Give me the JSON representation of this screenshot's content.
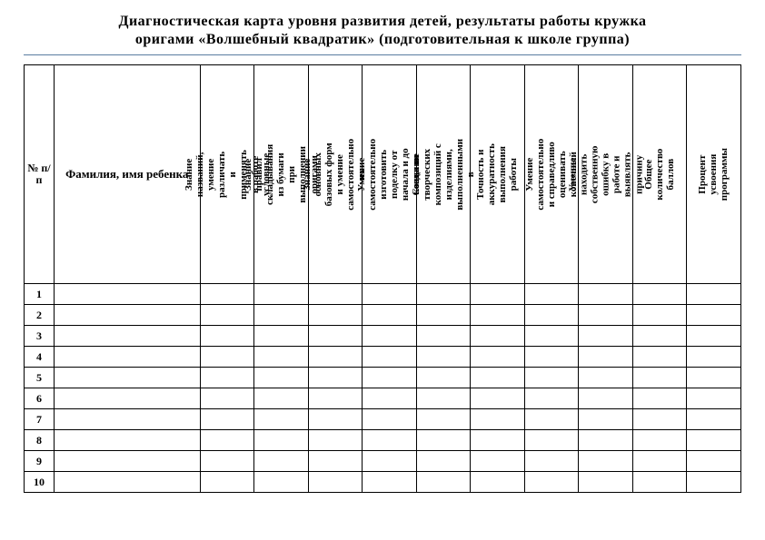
{
  "title_line1": "Диагностическая карта уровня развития детей, результаты работы кружка",
  "title_line2": "оригами «Волшебный квадратик» (подготовительная к школе группа)",
  "header": {
    "num": "№ п/п",
    "name": "Фамилия, имя ребенка",
    "cols": [
      "Знание названий, умение различать и применять в работе условные",
      "Знание правил складывания из бумаги при выполнении оригами",
      "Знание основных базовых форм и умение самостоятельно их",
      "Умение самостоятельно изготовить поделку от начала и до конца по",
      "Создание творческих композиций с изделиями, выполненными в",
      "Точность и аккуратность выполнения работы",
      "Умение самостоятельно и справедливо оценивать конечный",
      "Умение находить собственную ошибку в работе и выявлять причину",
      "Общее количество баллов",
      "Процент усвоения программы"
    ]
  },
  "rows": [
    {
      "n": "1"
    },
    {
      "n": "2"
    },
    {
      "n": "3"
    },
    {
      "n": "4"
    },
    {
      "n": "5"
    },
    {
      "n": "6"
    },
    {
      "n": "7"
    },
    {
      "n": "8"
    },
    {
      "n": "9"
    },
    {
      "n": "10"
    }
  ],
  "colors": {
    "rule": "#5a7ca0",
    "border": "#000000",
    "background": "#ffffff",
    "text": "#000000"
  }
}
